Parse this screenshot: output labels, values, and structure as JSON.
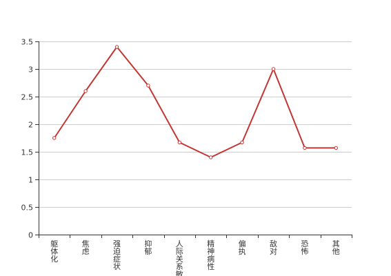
{
  "chart_data": {
    "type": "line",
    "title": "",
    "xlabel": "",
    "ylabel": "",
    "categories": [
      "躯体化",
      "焦虑",
      "强迫症状",
      "抑郁",
      "人际关系敏感",
      "精神病性",
      "偏执",
      "敌对",
      "恐怖",
      "其他"
    ],
    "series": [
      {
        "values": [
          1.75,
          2.6,
          3.4,
          2.7,
          1.67,
          1.4,
          1.67,
          3.0,
          1.57,
          1.57
        ]
      }
    ],
    "ylim": [
      0,
      3.5
    ],
    "yticks": [
      "0",
      "0.5",
      "1",
      "1.5",
      "2",
      "2.5",
      "3",
      "3.5"
    ],
    "grid": true,
    "legend": "none",
    "colors": {
      "line": "#c23531",
      "grid": "#cccccc",
      "axis": "#333333"
    }
  }
}
